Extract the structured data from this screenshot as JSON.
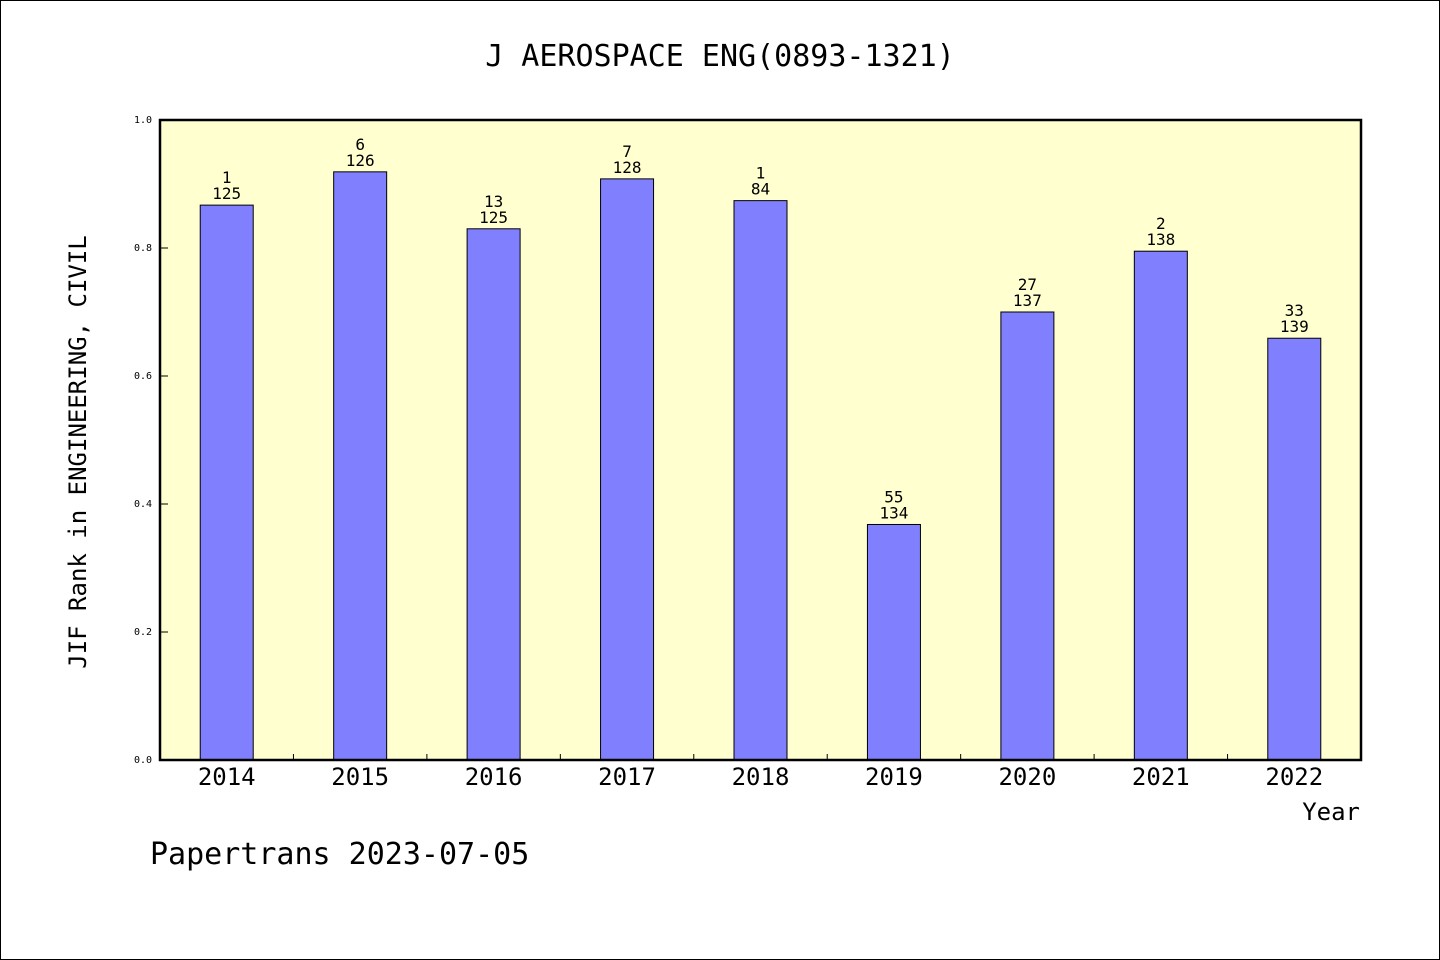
{
  "chart_data": {
    "type": "bar",
    "title": "J AEROSPACE ENG(0893-1321)",
    "xlabel": "Year",
    "ylabel": "JIF Rank in ENGINEERING, CIVIL",
    "ylim": [
      0,
      1.0
    ],
    "yticks": [
      "0.0",
      "0.2",
      "0.4",
      "0.6",
      "0.8",
      "1.0"
    ],
    "categories": [
      "2014",
      "2015",
      "2016",
      "2017",
      "2018",
      "2019",
      "2020",
      "2021",
      "2022"
    ],
    "values": [
      0.867,
      0.919,
      0.83,
      0.908,
      0.874,
      0.368,
      0.7,
      0.795,
      0.659
    ],
    "labels_top": [
      "1",
      "6",
      "13",
      "7",
      "1",
      "55",
      "27",
      "2",
      "33"
    ],
    "labels_bottom": [
      "125",
      "126",
      "125",
      "128",
      "84",
      "134",
      "137",
      "138",
      "139"
    ],
    "grid": false,
    "colors": {
      "bar": "#8080ff",
      "plot_bg": "#ffffd0"
    }
  },
  "footer": "Papertrans 2023-07-05"
}
